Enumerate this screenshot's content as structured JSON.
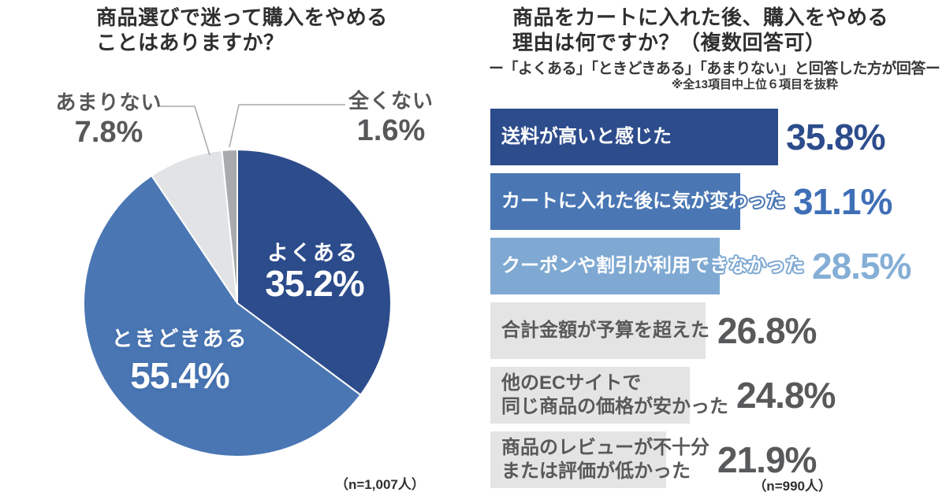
{
  "left_chart": {
    "title_line1": "商品選びで迷って購入をやめる",
    "title_line2": "ことはありますか？",
    "sample_size": "（n=1,007人）"
  },
  "right_chart": {
    "title_line1": "商品をカートに入れた後、購入をやめる",
    "title_line2": "理由は何ですか？（複数回答可）",
    "subtitle": "ー「よくある」「ときどきある」「あまりない」と回答した方が回答ー",
    "note": "※全13項目中上位６項目を抜粋",
    "sample_size": "（n=990人）"
  },
  "chart_data": [
    {
      "type": "pie",
      "title": "商品選びで迷って購入をやめることはありますか？",
      "sample_size_label": "（n=1,007人）",
      "start_angle_deg": 0,
      "direction": "clockwise",
      "slices": [
        {
          "label": "よくある",
          "value": 35.2,
          "display": "35.2%",
          "color": "#2d4c8c",
          "label_placement": "inside"
        },
        {
          "label": "ときどきある",
          "value": 55.4,
          "display": "55.4%",
          "color": "#4a77b4",
          "label_placement": "inside"
        },
        {
          "label": "あまりない",
          "value": 7.8,
          "display": "7.8%",
          "color": "#e2e3e5",
          "label_placement": "outside-left"
        },
        {
          "label": "全くない",
          "value": 1.6,
          "display": "1.6%",
          "color": "#a8aaad",
          "label_placement": "outside-right"
        }
      ]
    },
    {
      "type": "bar",
      "orientation": "horizontal",
      "title": "商品をカートに入れた後、購入をやめる理由は何ですか？（複数回答可）",
      "sample_size_label": "（n=990人）",
      "xlim": [
        0,
        40
      ],
      "categories": [
        "送料が高いと感じた",
        "カートに入れた後に気が変わった",
        "クーポンや割引が利用できなかった",
        "合計金額が予算を超えた",
        "他のECサイトで同じ商品の価格が安かった",
        "商品のレビューが不十分または評価が低かった"
      ],
      "values": [
        35.8,
        31.1,
        28.5,
        26.8,
        24.8,
        21.9
      ],
      "rows": [
        {
          "label_lines": [
            "送料が高いと感じた"
          ],
          "value": 35.8,
          "display": "35.8%",
          "bar_color": "#2d4c8c",
          "label_style": "light",
          "value_color": "#2d4c8c"
        },
        {
          "label_lines": [
            "カートに入れた後に気が変わった"
          ],
          "value": 31.1,
          "display": "31.1%",
          "bar_color": "#4a77b4",
          "label_style": "light",
          "value_color": "#3e6fb7"
        },
        {
          "label_lines": [
            "クーポンや割引が利用できなかった"
          ],
          "value": 28.5,
          "display": "28.5%",
          "bar_color": "#7fa9d2",
          "label_style": "light",
          "value_color": "#85aed6"
        },
        {
          "label_lines": [
            "合計金額が予算を超えた"
          ],
          "value": 26.8,
          "display": "26.8%",
          "bar_color": "#e4e4e5",
          "label_style": "dark",
          "value_color": "#58595b"
        },
        {
          "label_lines": [
            "他のECサイトで",
            "同じ商品の価格が安かった"
          ],
          "value": 24.8,
          "display": "24.8%",
          "bar_color": "#e4e4e5",
          "label_style": "dark",
          "value_color": "#58595b"
        },
        {
          "label_lines": [
            "商品のレビューが不十分",
            "または評価が低かった"
          ],
          "value": 21.9,
          "display": "21.9%",
          "bar_color": "#e4e4e5",
          "label_style": "dark",
          "value_color": "#58595b"
        }
      ],
      "dark_label_color": "#58595a"
    }
  ]
}
